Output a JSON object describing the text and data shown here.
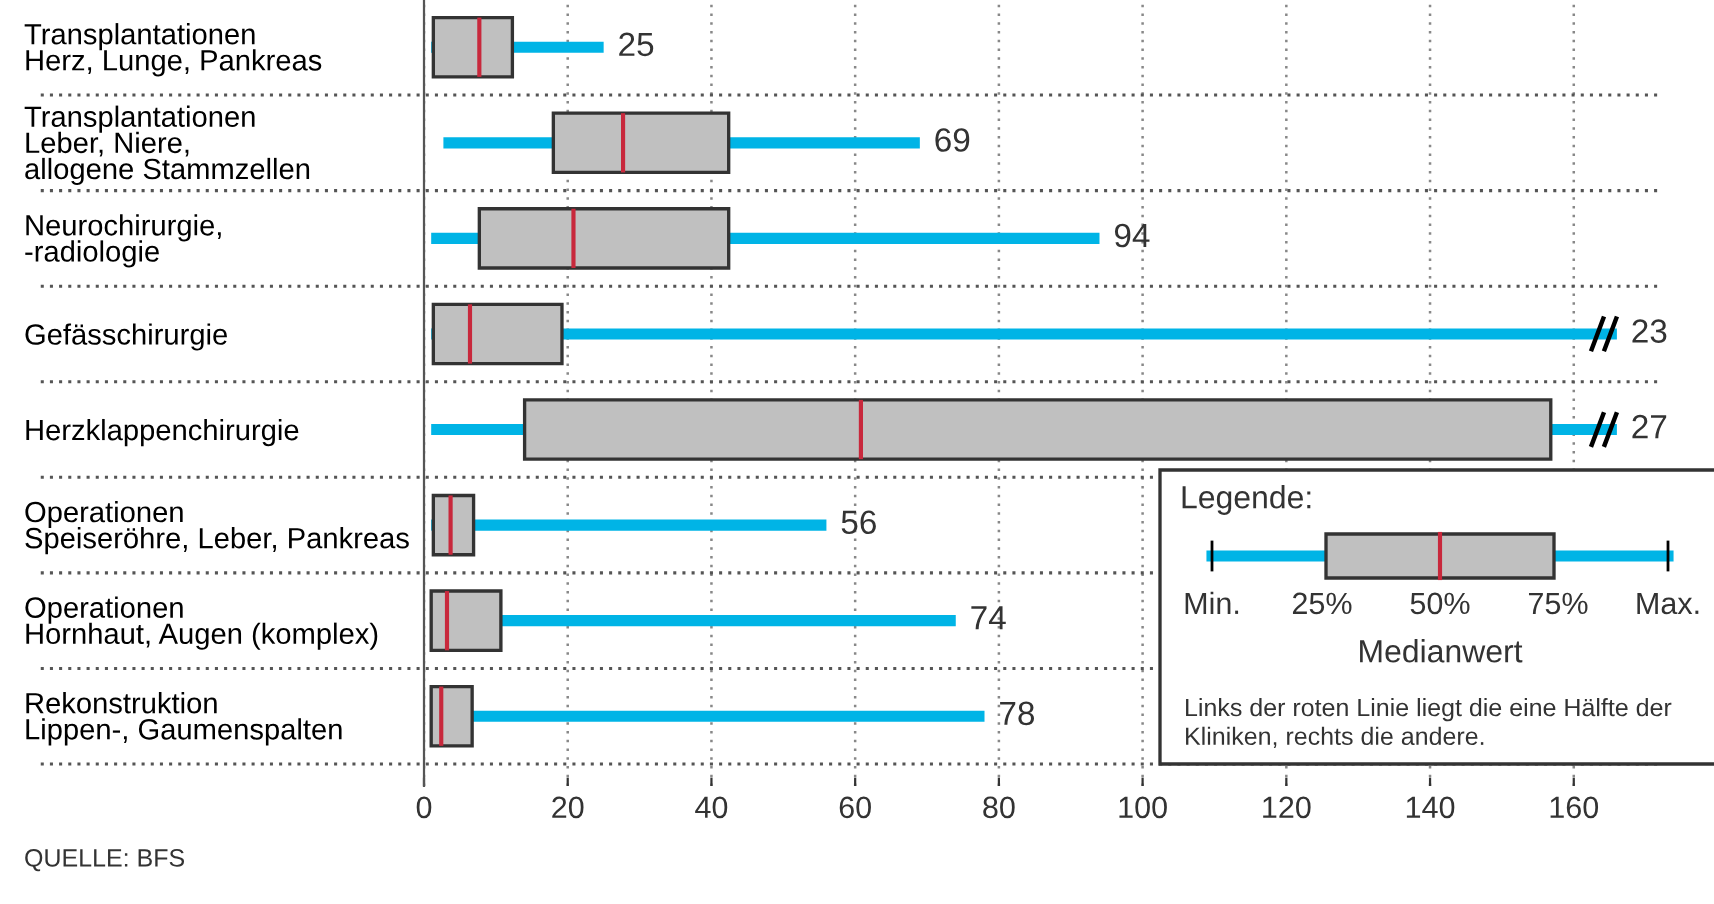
{
  "chart_data": {
    "type": "box",
    "orientation": "horizontal",
    "categories": [
      "Transplantationen\nHerz, Lunge, Pankreas",
      "Transplantationen\nLeber, Niere,\nallogene Stammzellen",
      "Neurochirurgie,\n-radiologie",
      "Gefässchirurgie",
      "Herzklappenchirurgie",
      "Operationen\nSpeiseröhre, Leber, Pankreas",
      "Operationen\nHornhaut, Augen (komplex)",
      "Rekonstruktion\nLippen-, Gaumenspalten"
    ],
    "boxes": [
      {
        "low": 1,
        "q1": 1.3,
        "median": 7.7,
        "q3": 12.3,
        "high": 25
      },
      {
        "low": 2.7,
        "q1": 18,
        "median": 27.7,
        "q3": 42.4,
        "high": 69
      },
      {
        "low": 1,
        "q1": 7.7,
        "median": 20.8,
        "q3": 42.4,
        "high": 94
      },
      {
        "low": 1,
        "q1": 1.3,
        "median": 6.4,
        "q3": 19.2,
        "high": 166
      },
      {
        "low": 1,
        "q1": 14,
        "median": 60.8,
        "q3": 156.8,
        "high": 166
      },
      {
        "low": 1,
        "q1": 1.3,
        "median": 3.7,
        "q3": 6.9,
        "high": 56
      },
      {
        "low": 1,
        "q1": 1,
        "median": 3.2,
        "q3": 10.7,
        "high": 74
      },
      {
        "low": 1,
        "q1": 1,
        "median": 2.4,
        "q3": 6.7,
        "high": 78
      }
    ],
    "xlim": [
      0,
      172
    ],
    "xticks": [
      0,
      20,
      40,
      60,
      80,
      100,
      120,
      140,
      160
    ],
    "grid": "x",
    "annotations": [
      {
        "text": "25",
        "x": 25,
        "y": "Transplantationen\nHerz, Lunge, Pankreas"
      },
      {
        "text": "69",
        "x": 69,
        "y": "Transplantationen\nLeber, Niere,\nallogene Stammzellen"
      },
      {
        "text": "94",
        "x": 94,
        "y": "Neurochirurgie,\n-radiologie"
      },
      {
        "text": "23",
        "x": 166,
        "y": "Gefässchirurgie"
      },
      {
        "text": "27",
        "x": 166,
        "y": "Herzklappenchirurgie"
      },
      {
        "text": "56",
        "x": 56,
        "y": "Operationen\nSpeiseröhre, Leber, Pankreas"
      },
      {
        "text": "74",
        "x": 74,
        "y": "Operationen\nHornhaut, Augen (komplex)"
      },
      {
        "text": "78",
        "x": 78,
        "y": "Rekonstruktion\nLippen-, Gaumenspalten"
      },
      "QUELLE: BFS",
      "Legende:",
      "Min.",
      "25%",
      "50%",
      "75%",
      "Max.",
      "Medianwert",
      "Links der roten Linie liegt die eine Hälfte der\nKliniken, rechts die andere."
    ]
  }
}
